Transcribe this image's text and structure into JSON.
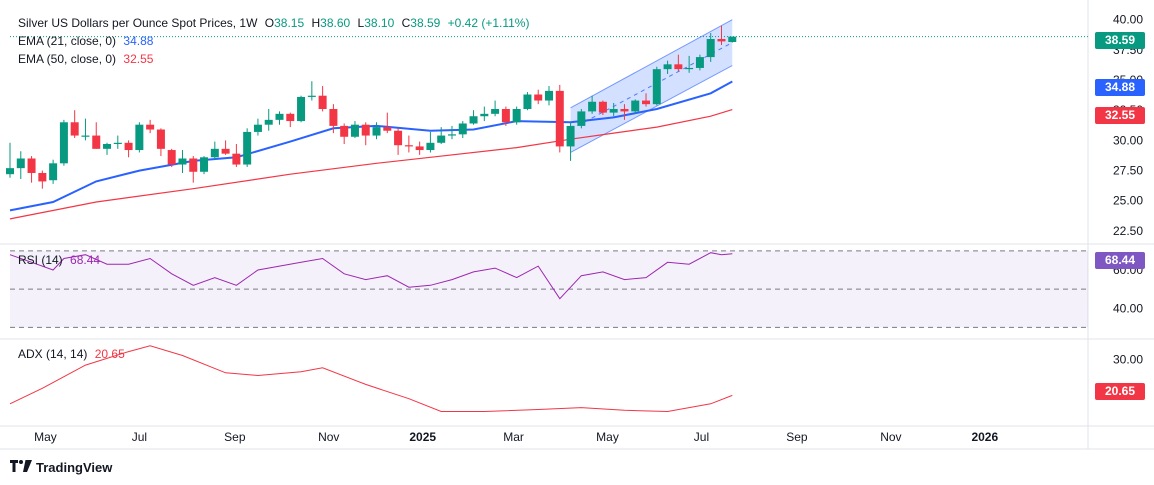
{
  "legend": {
    "title": "Silver US Dollars per Ounce Spot Prices, 1W",
    "o_label": "O",
    "o_value": "38.15",
    "h_label": "H",
    "h_value": "38.60",
    "l_label": "L",
    "l_value": "38.10",
    "c_label": "C",
    "c_value": "38.59",
    "change": "+0.42 (+1.11%)",
    "ema21_label": "EMA (21, close, 0)",
    "ema21_value": "34.88",
    "ema50_label": "EMA (50, close, 0)",
    "ema50_value": "32.55",
    "rsi_label": "RSI (14)",
    "rsi_value": "68.44",
    "adx_label": "ADX (14, 14)",
    "adx_value": "20.65"
  },
  "tags": {
    "price": "38.59",
    "ema21": "34.88",
    "ema50": "32.55",
    "rsi": "68.44",
    "adx": "20.65"
  },
  "brand": {
    "name": "TradingView"
  },
  "colors": {
    "up": "#089981",
    "down": "#f23645",
    "ema21": "#2962ff",
    "ema50": "#f23645",
    "rsi": "#9c27b0",
    "adx": "#f23645",
    "channel": "#2962ff",
    "rsi_band": "#9575cd"
  },
  "chart_data": {
    "type": "candlestick",
    "title": "Silver US Dollars per Ounce Spot Prices, 1W",
    "x_axis": {
      "range": [
        "2024-04-08",
        "2026-03-09"
      ],
      "ticks": [
        {
          "label": "May",
          "date": "2024-05-01"
        },
        {
          "label": "Jul",
          "date": "2024-07-01"
        },
        {
          "label": "Sep",
          "date": "2024-09-01"
        },
        {
          "label": "Nov",
          "date": "2024-11-01"
        },
        {
          "label": "2025",
          "date": "2025-01-01"
        },
        {
          "label": "Mar",
          "date": "2025-03-01"
        },
        {
          "label": "May",
          "date": "2025-05-01"
        },
        {
          "label": "Jul",
          "date": "2025-07-01"
        },
        {
          "label": "Sep",
          "date": "2025-09-01"
        },
        {
          "label": "Nov",
          "date": "2025-11-01"
        },
        {
          "label": "2026",
          "date": "2026-01-01"
        }
      ]
    },
    "price_axis": {
      "range": [
        21.5,
        40.8
      ],
      "ticks": [
        "40.00",
        "37.50",
        "35.00",
        "32.50",
        "30.00",
        "27.50",
        "25.00",
        "22.50"
      ]
    },
    "candles": [
      {
        "date": "2024-04-08",
        "o": 27.2,
        "h": 29.8,
        "l": 26.9,
        "c": 27.7
      },
      {
        "date": "2024-04-15",
        "o": 27.7,
        "h": 29.1,
        "l": 26.8,
        "c": 28.5
      },
      {
        "date": "2024-04-22",
        "o": 28.5,
        "h": 28.7,
        "l": 26.5,
        "c": 27.3
      },
      {
        "date": "2024-04-29",
        "o": 27.3,
        "h": 27.5,
        "l": 26.0,
        "c": 26.6
      },
      {
        "date": "2024-05-06",
        "o": 26.7,
        "h": 28.4,
        "l": 26.4,
        "c": 28.1
      },
      {
        "date": "2024-05-13",
        "o": 28.1,
        "h": 31.7,
        "l": 27.9,
        "c": 31.5
      },
      {
        "date": "2024-05-20",
        "o": 31.5,
        "h": 32.5,
        "l": 30.2,
        "c": 30.4
      },
      {
        "date": "2024-05-27",
        "o": 30.3,
        "h": 31.8,
        "l": 30.0,
        "c": 30.4
      },
      {
        "date": "2024-06-03",
        "o": 30.4,
        "h": 31.5,
        "l": 29.3,
        "c": 29.3
      },
      {
        "date": "2024-06-10",
        "o": 29.3,
        "h": 29.8,
        "l": 28.8,
        "c": 29.7
      },
      {
        "date": "2024-06-17",
        "o": 29.7,
        "h": 30.4,
        "l": 29.3,
        "c": 29.8
      },
      {
        "date": "2024-06-24",
        "o": 29.8,
        "h": 30.0,
        "l": 28.6,
        "c": 29.2
      },
      {
        "date": "2024-07-01",
        "o": 29.2,
        "h": 31.5,
        "l": 29.0,
        "c": 31.3
      },
      {
        "date": "2024-07-08",
        "o": 31.3,
        "h": 31.7,
        "l": 30.6,
        "c": 30.9
      },
      {
        "date": "2024-07-15",
        "o": 30.9,
        "h": 31.0,
        "l": 28.7,
        "c": 29.3
      },
      {
        "date": "2024-07-22",
        "o": 29.2,
        "h": 29.3,
        "l": 27.8,
        "c": 28.0
      },
      {
        "date": "2024-07-29",
        "o": 28.0,
        "h": 29.2,
        "l": 27.3,
        "c": 28.5
      },
      {
        "date": "2024-08-05",
        "o": 28.5,
        "h": 28.7,
        "l": 26.5,
        "c": 27.4
      },
      {
        "date": "2024-08-12",
        "o": 27.4,
        "h": 28.7,
        "l": 27.2,
        "c": 28.6
      },
      {
        "date": "2024-08-19",
        "o": 28.6,
        "h": 29.9,
        "l": 28.4,
        "c": 29.3
      },
      {
        "date": "2024-08-26",
        "o": 29.3,
        "h": 30.0,
        "l": 28.8,
        "c": 28.9
      },
      {
        "date": "2024-09-02",
        "o": 28.9,
        "h": 29.7,
        "l": 27.8,
        "c": 28.0
      },
      {
        "date": "2024-09-09",
        "o": 28.0,
        "h": 31.0,
        "l": 27.8,
        "c": 30.7
      },
      {
        "date": "2024-09-16",
        "o": 30.7,
        "h": 31.8,
        "l": 30.4,
        "c": 31.3
      },
      {
        "date": "2024-09-23",
        "o": 31.3,
        "h": 32.6,
        "l": 30.8,
        "c": 31.7
      },
      {
        "date": "2024-09-30",
        "o": 31.7,
        "h": 32.4,
        "l": 31.3,
        "c": 32.2
      },
      {
        "date": "2024-10-07",
        "o": 32.2,
        "h": 32.3,
        "l": 31.1,
        "c": 31.6
      },
      {
        "date": "2024-10-14",
        "o": 31.6,
        "h": 33.7,
        "l": 31.5,
        "c": 33.6
      },
      {
        "date": "2024-10-21",
        "o": 33.6,
        "h": 34.9,
        "l": 33.3,
        "c": 33.7
      },
      {
        "date": "2024-10-28",
        "o": 33.7,
        "h": 34.5,
        "l": 32.4,
        "c": 32.6
      },
      {
        "date": "2024-11-04",
        "o": 32.6,
        "h": 33.0,
        "l": 30.6,
        "c": 31.2
      },
      {
        "date": "2024-11-11",
        "o": 31.2,
        "h": 31.4,
        "l": 29.7,
        "c": 30.3
      },
      {
        "date": "2024-11-18",
        "o": 30.3,
        "h": 31.6,
        "l": 30.2,
        "c": 31.3
      },
      {
        "date": "2024-11-25",
        "o": 31.3,
        "h": 31.5,
        "l": 29.6,
        "c": 30.4
      },
      {
        "date": "2024-12-02",
        "o": 30.4,
        "h": 31.5,
        "l": 30.1,
        "c": 31.1
      },
      {
        "date": "2024-12-09",
        "o": 31.1,
        "h": 32.3,
        "l": 30.6,
        "c": 30.8
      },
      {
        "date": "2024-12-16",
        "o": 30.8,
        "h": 31.0,
        "l": 28.8,
        "c": 29.6
      },
      {
        "date": "2024-12-23",
        "o": 29.6,
        "h": 30.4,
        "l": 29.0,
        "c": 29.5
      },
      {
        "date": "2024-12-30",
        "o": 29.5,
        "h": 29.9,
        "l": 28.8,
        "c": 29.2
      },
      {
        "date": "2025-01-06",
        "o": 29.2,
        "h": 30.7,
        "l": 29.0,
        "c": 29.8
      },
      {
        "date": "2025-01-13",
        "o": 29.8,
        "h": 31.1,
        "l": 29.7,
        "c": 30.4
      },
      {
        "date": "2025-01-20",
        "o": 30.4,
        "h": 31.2,
        "l": 30.1,
        "c": 30.5
      },
      {
        "date": "2025-01-27",
        "o": 30.5,
        "h": 31.6,
        "l": 30.2,
        "c": 31.4
      },
      {
        "date": "2025-02-03",
        "o": 31.4,
        "h": 32.5,
        "l": 31.3,
        "c": 32.0
      },
      {
        "date": "2025-02-10",
        "o": 32.0,
        "h": 32.8,
        "l": 31.6,
        "c": 32.2
      },
      {
        "date": "2025-02-17",
        "o": 32.2,
        "h": 33.3,
        "l": 32.0,
        "c": 32.6
      },
      {
        "date": "2025-02-24",
        "o": 32.6,
        "h": 32.8,
        "l": 31.2,
        "c": 31.5
      },
      {
        "date": "2025-03-03",
        "o": 31.5,
        "h": 32.8,
        "l": 31.3,
        "c": 32.6
      },
      {
        "date": "2025-03-10",
        "o": 32.6,
        "h": 34.0,
        "l": 32.5,
        "c": 33.8
      },
      {
        "date": "2025-03-17",
        "o": 33.8,
        "h": 34.2,
        "l": 33.0,
        "c": 33.3
      },
      {
        "date": "2025-03-24",
        "o": 33.3,
        "h": 34.5,
        "l": 32.9,
        "c": 34.1
      },
      {
        "date": "2025-03-31",
        "o": 34.1,
        "h": 34.6,
        "l": 29.0,
        "c": 29.5
      },
      {
        "date": "2025-04-07",
        "o": 29.5,
        "h": 31.5,
        "l": 28.3,
        "c": 31.2
      },
      {
        "date": "2025-04-14",
        "o": 31.2,
        "h": 32.6,
        "l": 31.0,
        "c": 32.4
      },
      {
        "date": "2025-04-21",
        "o": 32.4,
        "h": 33.7,
        "l": 32.2,
        "c": 33.2
      },
      {
        "date": "2025-04-28",
        "o": 33.2,
        "h": 33.3,
        "l": 32.1,
        "c": 32.3
      },
      {
        "date": "2025-05-05",
        "o": 32.3,
        "h": 33.1,
        "l": 32.0,
        "c": 32.6
      },
      {
        "date": "2025-05-12",
        "o": 32.6,
        "h": 33.0,
        "l": 31.7,
        "c": 32.4
      },
      {
        "date": "2025-05-19",
        "o": 32.4,
        "h": 33.4,
        "l": 32.2,
        "c": 33.3
      },
      {
        "date": "2025-05-26",
        "o": 33.3,
        "h": 33.9,
        "l": 32.8,
        "c": 33.0
      },
      {
        "date": "2025-06-02",
        "o": 33.0,
        "h": 36.1,
        "l": 32.9,
        "c": 35.9
      },
      {
        "date": "2025-06-09",
        "o": 35.9,
        "h": 36.6,
        "l": 35.5,
        "c": 36.3
      },
      {
        "date": "2025-06-16",
        "o": 36.3,
        "h": 37.1,
        "l": 35.7,
        "c": 35.9
      },
      {
        "date": "2025-06-23",
        "o": 35.9,
        "h": 37.0,
        "l": 35.6,
        "c": 36.0
      },
      {
        "date": "2025-06-30",
        "o": 36.0,
        "h": 37.1,
        "l": 35.8,
        "c": 36.9
      },
      {
        "date": "2025-07-07",
        "o": 36.9,
        "h": 38.9,
        "l": 36.5,
        "c": 38.4
      },
      {
        "date": "2025-07-14",
        "o": 38.4,
        "h": 39.5,
        "l": 37.9,
        "c": 38.2
      },
      {
        "date": "2025-07-21",
        "o": 38.15,
        "h": 38.6,
        "l": 38.1,
        "c": 38.59
      }
    ],
    "ema21": [
      [
        "2024-04-08",
        24.2
      ],
      [
        "2024-05-06",
        24.9
      ],
      [
        "2024-06-03",
        26.6
      ],
      [
        "2024-07-01",
        27.5
      ],
      [
        "2024-08-05",
        28.3
      ],
      [
        "2024-09-02",
        28.6
      ],
      [
        "2024-10-07",
        29.9
      ],
      [
        "2024-11-04",
        31.0
      ],
      [
        "2024-12-02",
        31.2
      ],
      [
        "2025-01-06",
        30.8
      ],
      [
        "2025-02-03",
        30.9
      ],
      [
        "2025-03-03",
        31.6
      ],
      [
        "2025-04-07",
        31.5
      ],
      [
        "2025-05-05",
        31.9
      ],
      [
        "2025-06-02",
        32.6
      ],
      [
        "2025-07-07",
        33.9
      ],
      [
        "2025-07-21",
        34.88
      ]
    ],
    "ema50": [
      [
        "2024-04-08",
        23.5
      ],
      [
        "2024-06-03",
        24.9
      ],
      [
        "2024-08-05",
        26.0
      ],
      [
        "2024-10-07",
        27.2
      ],
      [
        "2024-12-02",
        28.1
      ],
      [
        "2025-01-06",
        28.6
      ],
      [
        "2025-03-03",
        29.4
      ],
      [
        "2025-04-07",
        30.1
      ],
      [
        "2025-05-05",
        30.6
      ],
      [
        "2025-06-02",
        31.1
      ],
      [
        "2025-07-07",
        32.0
      ],
      [
        "2025-07-21",
        32.55
      ]
    ],
    "channel": {
      "upper": [
        [
          "2025-04-07",
          32.7
        ],
        [
          "2025-07-21",
          40.0
        ]
      ],
      "lower": [
        [
          "2025-04-07",
          29.0
        ],
        [
          "2025-07-21",
          36.2
        ]
      ],
      "mid": [
        [
          "2025-04-07",
          30.9
        ],
        [
          "2025-07-21",
          38.1
        ]
      ]
    },
    "rsi": {
      "axis_range": [
        25,
        72
      ],
      "ticks": [
        "60.00",
        "40.00"
      ],
      "bands": [
        70,
        50,
        30
      ],
      "points": [
        [
          "2024-04-08",
          68
        ],
        [
          "2024-04-22",
          64
        ],
        [
          "2024-05-06",
          60
        ],
        [
          "2024-05-13",
          66
        ],
        [
          "2024-05-27",
          68
        ],
        [
          "2024-06-10",
          63
        ],
        [
          "2024-06-24",
          63
        ],
        [
          "2024-07-08",
          66
        ],
        [
          "2024-07-22",
          58
        ],
        [
          "2024-08-05",
          52
        ],
        [
          "2024-08-19",
          56
        ],
        [
          "2024-09-02",
          52
        ],
        [
          "2024-09-16",
          60
        ],
        [
          "2024-09-30",
          62
        ],
        [
          "2024-10-14",
          64
        ],
        [
          "2024-10-28",
          66
        ],
        [
          "2024-11-11",
          58
        ],
        [
          "2024-11-25",
          55
        ],
        [
          "2024-12-09",
          57
        ],
        [
          "2024-12-23",
          51
        ],
        [
          "2025-01-06",
          52
        ],
        [
          "2025-01-20",
          55
        ],
        [
          "2025-02-03",
          59
        ],
        [
          "2025-02-17",
          61
        ],
        [
          "2025-03-03",
          56
        ],
        [
          "2025-03-17",
          62
        ],
        [
          "2025-03-31",
          45
        ],
        [
          "2025-04-14",
          57
        ],
        [
          "2025-04-28",
          59
        ],
        [
          "2025-05-12",
          55
        ],
        [
          "2025-05-26",
          56
        ],
        [
          "2025-06-09",
          64
        ],
        [
          "2025-06-23",
          63
        ],
        [
          "2025-07-07",
          69
        ],
        [
          "2025-07-14",
          68
        ],
        [
          "2025-07-21",
          68.44
        ]
      ]
    },
    "adx": {
      "axis_range": [
        13,
        35
      ],
      "ticks": [
        "30.00"
      ],
      "points": [
        [
          "2024-04-08",
          18.5
        ],
        [
          "2024-04-29",
          22.5
        ],
        [
          "2024-05-27",
          28.5
        ],
        [
          "2024-06-24",
          32.0
        ],
        [
          "2024-07-08",
          33.5
        ],
        [
          "2024-07-29",
          31.0
        ],
        [
          "2024-08-26",
          26.5
        ],
        [
          "2024-09-16",
          25.8
        ],
        [
          "2024-10-14",
          26.8
        ],
        [
          "2024-10-28",
          27.8
        ],
        [
          "2024-11-25",
          23.5
        ],
        [
          "2024-12-23",
          19.8
        ],
        [
          "2025-01-13",
          16.5
        ],
        [
          "2025-02-10",
          16.5
        ],
        [
          "2025-03-17",
          17.0
        ],
        [
          "2025-04-14",
          17.5
        ],
        [
          "2025-05-12",
          16.8
        ],
        [
          "2025-06-09",
          16.5
        ],
        [
          "2025-07-07",
          18.5
        ],
        [
          "2025-07-21",
          20.65
        ]
      ]
    },
    "last_price_line": 38.59
  }
}
